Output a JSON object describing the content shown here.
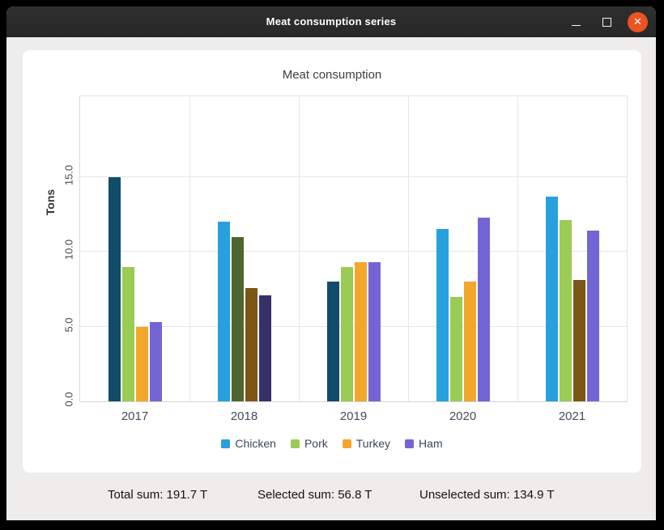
{
  "window": {
    "title": "Meat consumption series"
  },
  "chart": {
    "title": "Meat consumption",
    "y_axis_title": "Tons"
  },
  "chart_data": {
    "type": "bar",
    "title": "Meat consumption",
    "categories": [
      "2017",
      "2018",
      "2019",
      "2020",
      "2021"
    ],
    "series": [
      {
        "name": "Chicken",
        "color": "#27a0dd",
        "selected_color": "#114d68",
        "values": [
          15.0,
          12.0,
          8.0,
          11.5,
          13.7
        ],
        "selected": [
          true,
          false,
          true,
          false,
          false
        ]
      },
      {
        "name": "Pork",
        "color": "#9acb54",
        "selected_color": "#4d6630",
        "values": [
          9.0,
          11.0,
          9.0,
          7.0,
          12.1
        ],
        "selected": [
          false,
          true,
          false,
          false,
          false
        ]
      },
      {
        "name": "Turkey",
        "color": "#f2a72b",
        "selected_color": "#7c5615",
        "values": [
          5.0,
          7.6,
          9.3,
          8.0,
          8.1
        ],
        "selected": [
          false,
          true,
          false,
          false,
          true
        ]
      },
      {
        "name": "Ham",
        "color": "#7366d4",
        "selected_color": "#383069",
        "values": [
          5.3,
          7.1,
          9.3,
          12.3,
          11.4
        ],
        "selected": [
          false,
          true,
          false,
          false,
          false
        ]
      }
    ],
    "xlabel": "",
    "ylabel": "Tons",
    "ylim": [
      0,
      20.4
    ],
    "y_ticks": [
      0.0,
      5.0,
      10.0,
      15.0
    ],
    "y_tick_labels": [
      "0.0",
      "5.0",
      "10.0",
      "15.0"
    ],
    "grid": true,
    "legend_position": "bottom"
  },
  "status": {
    "total": "Total sum: 191.7 T",
    "selected": "Selected sum: 56.8 T",
    "unselected": "Unselected sum: 134.9 T"
  },
  "colors": {
    "titlebar_bg": "#2c2c2c",
    "close_button": "#e95420",
    "window_bg": "#eeedec",
    "card_bg": "#ffffff"
  }
}
